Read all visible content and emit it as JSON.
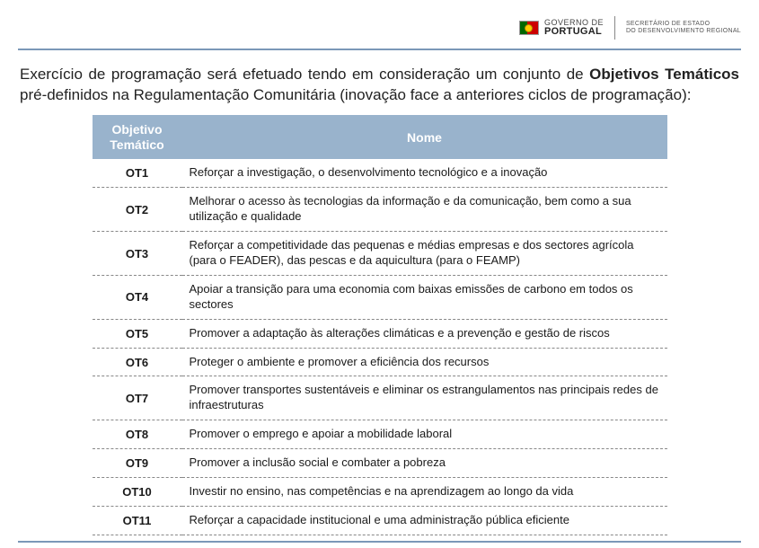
{
  "header": {
    "gov_line1": "GOVERNO DE",
    "gov_line2": "PORTUGAL",
    "sec_line1": "SECRETÁRIO DE ESTADO",
    "sec_line2": "DO DESENVOLVIMENTO REGIONAL"
  },
  "intro": {
    "part1": "Exercício de programação será efetuado tendo em consideração um conjunto de ",
    "bold": "Objetivos Temáticos",
    "part2": " pré-definidos na Regulamentação Comunitária (inovação face a anteriores ciclos de programação):"
  },
  "table": {
    "header_col1_line1": "Objetivo",
    "header_col1_line2": "Temático",
    "header_col2": "Nome",
    "rows": [
      {
        "ot": "OT1",
        "name": "Reforçar a investigação, o desenvolvimento tecnológico e a inovação"
      },
      {
        "ot": "OT2",
        "name": "Melhorar o acesso às tecnologias da informação e da comunicação, bem como a sua utilização e qualidade"
      },
      {
        "ot": "OT3",
        "name": "Reforçar a competitividade das pequenas e médias empresas e dos sectores agrícola (para o FEADER), das pescas e da aquicultura (para o FEAMP)"
      },
      {
        "ot": "OT4",
        "name": "Apoiar a transição para uma economia com baixas emissões de carbono em todos os sectores"
      },
      {
        "ot": "OT5",
        "name": "Promover a adaptação às alterações climáticas e a prevenção e gestão de riscos"
      },
      {
        "ot": "OT6",
        "name": "Proteger o ambiente e promover a eficiência dos recursos"
      },
      {
        "ot": "OT7",
        "name": "Promover transportes sustentáveis e eliminar os estrangulamentos nas principais redes de infraestruturas"
      },
      {
        "ot": "OT8",
        "name": "Promover o emprego e apoiar a mobilidade laboral"
      },
      {
        "ot": "OT9",
        "name": "Promover a inclusão social e combater a pobreza"
      },
      {
        "ot": "OT10",
        "name": "Investir no ensino, nas competências e na aprendizagem ao longo da vida"
      },
      {
        "ot": "OT11",
        "name": "Reforçar a capacidade institucional e uma administração pública eficiente"
      }
    ]
  },
  "colors": {
    "header_bg": "#99b3cc",
    "rule": "#7b98b8",
    "text": "#1a1a1a"
  }
}
